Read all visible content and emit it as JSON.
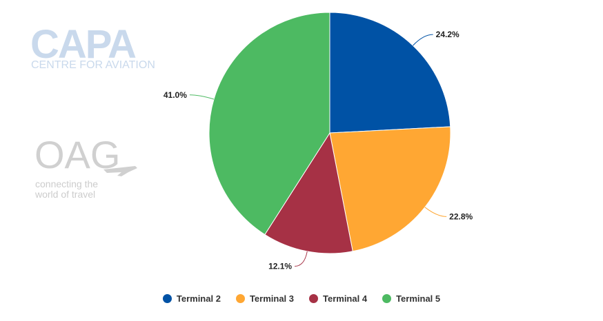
{
  "watermarks": {
    "capa_title": "CAPA",
    "capa_subtitle": "CENTRE FOR AVIATION",
    "oag_title": "OAG",
    "oag_tagline_1": "connecting the",
    "oag_tagline_2": "world of travel"
  },
  "chart_data": {
    "type": "pie",
    "title": "",
    "categories": [
      "Terminal 2",
      "Terminal 3",
      "Terminal 4",
      "Terminal 5"
    ],
    "values": [
      24.2,
      22.8,
      12.1,
      41.0
    ],
    "labels": [
      "24.2%",
      "22.8%",
      "12.1%",
      "41.0%"
    ],
    "colors": [
      "#0052a5",
      "#ffa733",
      "#a63145",
      "#4dba62"
    ],
    "start_angle_deg": 0,
    "direction": "clockwise",
    "legend_position": "bottom"
  }
}
